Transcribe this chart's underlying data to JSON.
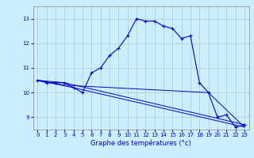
{
  "xlabel": "Graphe des températures (°c)",
  "background_color": "#cceeff",
  "line_color": "#0000cc",
  "grid_color": "#aacccc",
  "ylim": [
    8.5,
    13.5
  ],
  "xlim": [
    -0.5,
    23.5
  ],
  "yticks": [
    9,
    10,
    11,
    12,
    13
  ],
  "xticks": [
    0,
    1,
    2,
    3,
    4,
    5,
    6,
    7,
    8,
    9,
    10,
    11,
    12,
    13,
    14,
    15,
    16,
    17,
    18,
    19,
    20,
    21,
    22,
    23
  ],
  "series": [
    {
      "x": [
        0,
        1,
        2,
        3,
        4,
        5,
        6,
        7,
        8,
        9,
        10,
        11,
        12,
        13,
        14,
        15,
        16,
        17,
        18,
        19,
        20,
        21,
        22,
        23
      ],
      "y": [
        10.5,
        10.4,
        10.4,
        10.4,
        10.2,
        10.0,
        10.8,
        11.0,
        11.5,
        11.8,
        12.3,
        13.0,
        12.9,
        12.9,
        12.7,
        12.6,
        12.2,
        12.3,
        10.4,
        10.0,
        9.0,
        9.1,
        8.6,
        8.7
      ],
      "marker": true
    },
    {
      "x": [
        0,
        3,
        23
      ],
      "y": [
        10.5,
        10.4,
        8.7
      ],
      "marker": false
    },
    {
      "x": [
        0,
        3,
        19,
        23
      ],
      "y": [
        10.5,
        10.3,
        10.0,
        8.6
      ],
      "marker": false
    },
    {
      "x": [
        0,
        4,
        23
      ],
      "y": [
        10.5,
        10.2,
        8.6
      ],
      "marker": false
    }
  ],
  "figsize": [
    3.2,
    2.0
  ],
  "dpi": 100
}
